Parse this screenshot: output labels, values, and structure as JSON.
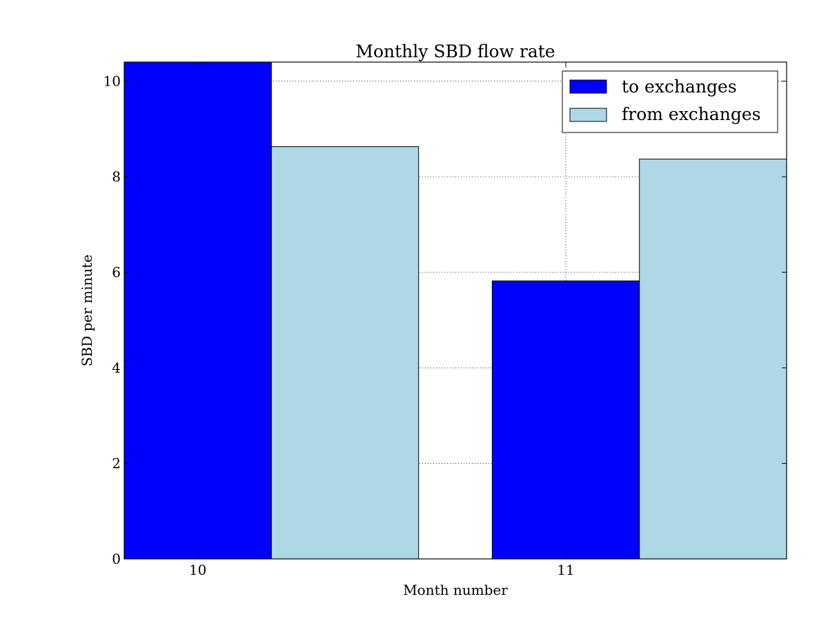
{
  "chart_data": {
    "type": "bar",
    "title": "Monthly SBD flow rate",
    "xlabel": "Month number",
    "ylabel": "SBD per minute",
    "categories": [
      "10",
      "11"
    ],
    "series": [
      {
        "name": "to exchanges",
        "values": [
          10.4,
          5.82
        ],
        "color": "#0000ff"
      },
      {
        "name": "from exchanges",
        "values": [
          8.63,
          8.37
        ],
        "color": "#add8e6"
      }
    ],
    "ylim": [
      0,
      10.4
    ],
    "xlim": [
      9.8,
      11.6
    ],
    "yticks": [
      0,
      2,
      4,
      6,
      8,
      10
    ],
    "grid": true,
    "legend_position": "top-right"
  }
}
